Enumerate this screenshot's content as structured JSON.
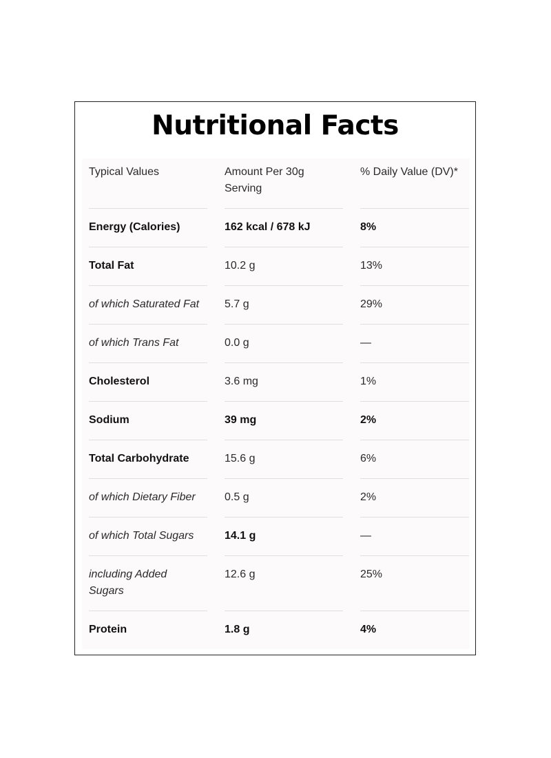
{
  "title": "Nutritional Facts",
  "headers": [
    "Typical Values",
    "Amount Per 30g Serving",
    "% Daily Value (DV)*"
  ],
  "rows": [
    {
      "name": "Energy (Calories)",
      "amount": "162 kcal / 678 kJ",
      "dv": "8%"
    },
    {
      "name": "Total Fat",
      "amount": "10.2 g",
      "dv": "13%"
    },
    {
      "name": "of which Saturated Fat",
      "amount": "5.7 g",
      "dv": "29%"
    },
    {
      "name": "of which Trans Fat",
      "amount": "0.0 g",
      "dv": "—"
    },
    {
      "name": "Cholesterol",
      "amount": "3.6 mg",
      "dv": "1%"
    },
    {
      "name": "Sodium",
      "amount": "39 mg",
      "dv": "2%"
    },
    {
      "name": "Total Carbohydrate",
      "amount": "15.6 g",
      "dv": "6%"
    },
    {
      "name": "of which Dietary Fiber",
      "amount": "0.5 g",
      "dv": "2%"
    },
    {
      "name": "of which Total Sugars",
      "amount": "14.1 g",
      "dv": "—"
    },
    {
      "name": "including Added Sugars",
      "amount": "12.6 g",
      "dv": "25%"
    },
    {
      "name": "Protein",
      "amount": "1.8 g",
      "dv": "4%"
    }
  ]
}
